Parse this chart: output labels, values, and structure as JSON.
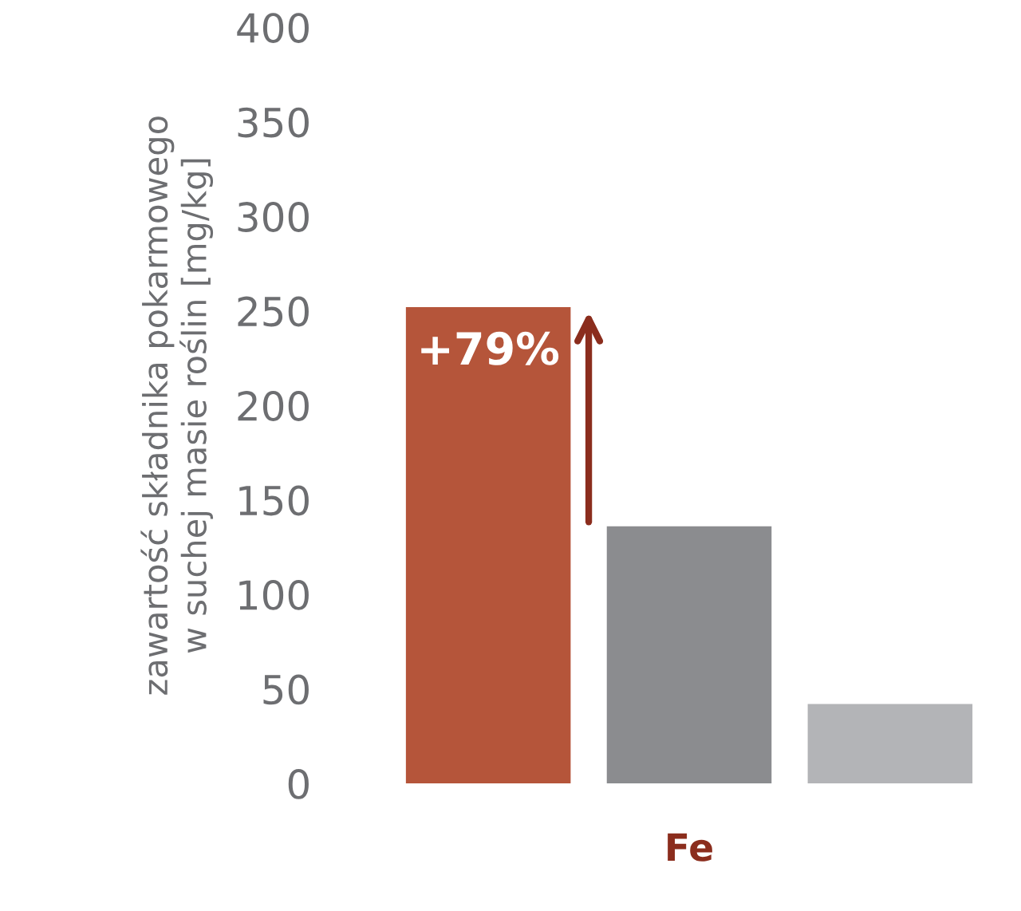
{
  "chart_data": {
    "type": "bar",
    "categories": [
      null,
      "Fe",
      null
    ],
    "values": [
      252,
      136,
      42
    ],
    "colors": [
      "#b5553a",
      "#8b8c8f",
      "#b3b4b7"
    ],
    "ylabel": "zawartość składnika pokarmowego\nw suchej masie roślin [mg/kg]",
    "ylim": [
      0,
      400
    ],
    "yticks": [
      0,
      50,
      100,
      150,
      200,
      250,
      300,
      350,
      400
    ],
    "grid": false,
    "annotations": [
      "+79%"
    ]
  }
}
